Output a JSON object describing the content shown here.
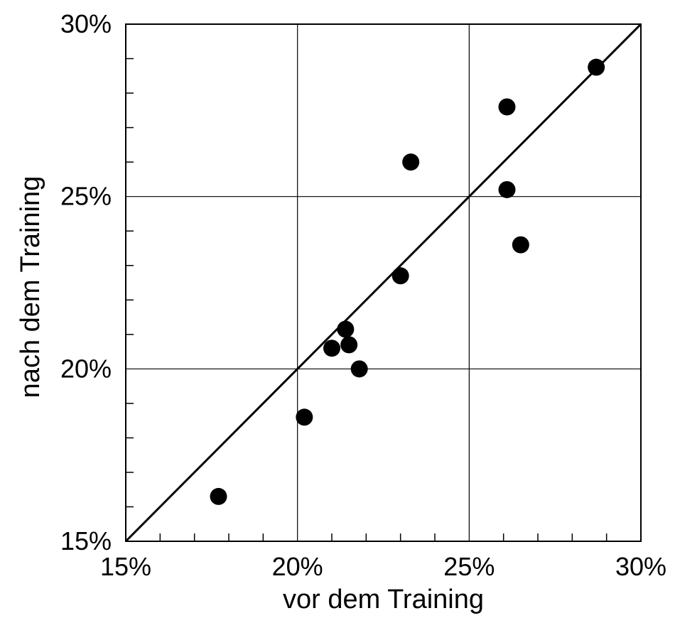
{
  "chart_data": {
    "type": "scatter",
    "title": "",
    "xlabel": "vor dem Training",
    "ylabel": "nach dem Training",
    "xlim": [
      15,
      30
    ],
    "ylim": [
      15,
      30
    ],
    "unit": "%",
    "x_tick_values": [
      15,
      20,
      25,
      30
    ],
    "x_tick_labels": [
      "15%",
      "20%",
      "25%",
      "30%"
    ],
    "y_tick_values": [
      15,
      20,
      25,
      30
    ],
    "y_tick_labels": [
      "15%",
      "20%",
      "25%",
      "30%"
    ],
    "minor_tick_step": 1,
    "grid": true,
    "reference_line": {
      "type": "identity",
      "from": [
        15,
        15
      ],
      "to": [
        30,
        30
      ]
    },
    "series": [
      {
        "points": [
          {
            "x": 17.7,
            "y": 16.3
          },
          {
            "x": 20.2,
            "y": 18.6
          },
          {
            "x": 21.0,
            "y": 20.6
          },
          {
            "x": 21.4,
            "y": 21.15
          },
          {
            "x": 21.5,
            "y": 20.7
          },
          {
            "x": 21.8,
            "y": 20.0
          },
          {
            "x": 23.0,
            "y": 22.7
          },
          {
            "x": 23.3,
            "y": 26.0
          },
          {
            "x": 26.1,
            "y": 27.6
          },
          {
            "x": 26.1,
            "y": 25.2
          },
          {
            "x": 26.5,
            "y": 23.6
          },
          {
            "x": 28.7,
            "y": 28.75
          }
        ]
      }
    ],
    "colors": {
      "marker": "#000000",
      "axis": "#000000",
      "grid": "#000000"
    }
  }
}
